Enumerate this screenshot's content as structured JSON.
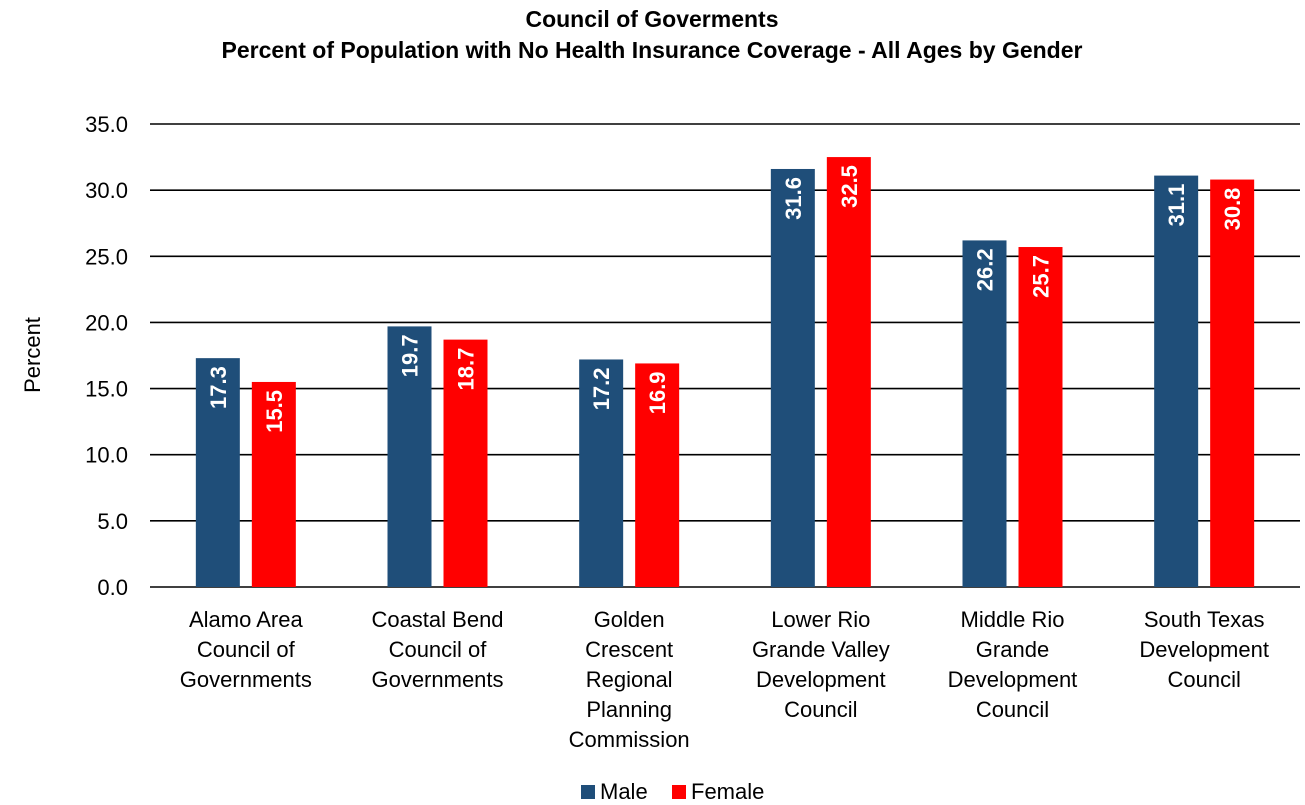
{
  "chart_data": {
    "type": "bar",
    "title": "Council of Goverments",
    "subtitle": "Percent of Population with No Health Insurance Coverage - All Ages by Gender",
    "xlabel": "",
    "ylabel": "Percent",
    "ylim": [
      0,
      35
    ],
    "yticks": [
      "0.0",
      "5.0",
      "10.0",
      "15.0",
      "20.0",
      "25.0",
      "30.0",
      "35.0"
    ],
    "grid": true,
    "legend_position": "bottom",
    "categories": [
      [
        "Alamo Area",
        "Council of",
        "Governments"
      ],
      [
        "Coastal Bend",
        "Council of",
        "Governments"
      ],
      [
        "Golden",
        "Crescent",
        "Regional",
        "Planning",
        "Commission"
      ],
      [
        "Lower Rio",
        "Grande Valley",
        "Development",
        "Council"
      ],
      [
        "Middle Rio",
        "Grande",
        "Development",
        "Council"
      ],
      [
        "South Texas",
        "Development",
        "Council"
      ]
    ],
    "series": [
      {
        "name": "Male",
        "color": "#1F4E79",
        "values": [
          17.3,
          19.7,
          17.2,
          31.6,
          26.2,
          31.1
        ]
      },
      {
        "name": "Female",
        "color": "#FF0000",
        "values": [
          15.5,
          18.7,
          16.9,
          32.5,
          25.7,
          30.8
        ]
      }
    ]
  }
}
